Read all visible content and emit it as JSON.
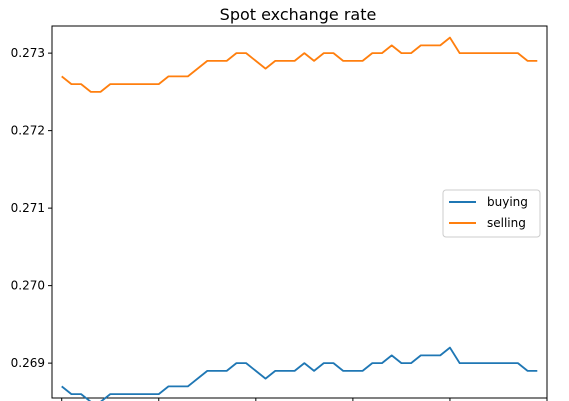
{
  "chart_data": {
    "type": "line",
    "title": "Spot exchange rate",
    "xlabel": "",
    "ylabel": "",
    "x": [
      1,
      2,
      3,
      4,
      5,
      6,
      7,
      8,
      9,
      10,
      11,
      12,
      13,
      14,
      15,
      16,
      17,
      18,
      19,
      20,
      21,
      22,
      23,
      24,
      25,
      26,
      27,
      28,
      29,
      30,
      31,
      32,
      33,
      34,
      35,
      36,
      37,
      38,
      39,
      40,
      41,
      42,
      43,
      44,
      45,
      46,
      47,
      48,
      49,
      50
    ],
    "xlim": [
      0,
      51
    ],
    "ylim": [
      0.26855,
      0.27335
    ],
    "yticks": [
      0.269,
      0.27,
      0.271,
      0.272,
      0.273
    ],
    "ytick_labels": [
      "0.269",
      "0.270",
      "0.271",
      "0.272",
      "0.273"
    ],
    "xticks": [
      1,
      11,
      21,
      31,
      41,
      51
    ],
    "grid": false,
    "legend_position": "center-right",
    "series": [
      {
        "name": "buying",
        "color": "#1f77b4",
        "values": [
          0.2687,
          0.2686,
          0.2686,
          0.2685,
          0.2685,
          0.2686,
          0.2686,
          0.2686,
          0.2686,
          0.2686,
          0.2686,
          0.2687,
          0.2687,
          0.2687,
          0.2688,
          0.2689,
          0.2689,
          0.2689,
          0.269,
          0.269,
          0.2689,
          0.2688,
          0.2689,
          0.2689,
          0.2689,
          0.269,
          0.2689,
          0.269,
          0.269,
          0.2689,
          0.2689,
          0.2689,
          0.269,
          0.269,
          0.2691,
          0.269,
          0.269,
          0.2691,
          0.2691,
          0.2691,
          0.2692,
          0.269,
          0.269,
          0.269,
          0.269,
          0.269,
          0.269,
          0.269,
          0.2689,
          0.2689
        ]
      },
      {
        "name": "selling",
        "color": "#ff7f0e",
        "values": [
          0.2727,
          0.2726,
          0.2726,
          0.2725,
          0.2725,
          0.2726,
          0.2726,
          0.2726,
          0.2726,
          0.2726,
          0.2726,
          0.2727,
          0.2727,
          0.2727,
          0.2728,
          0.2729,
          0.2729,
          0.2729,
          0.273,
          0.273,
          0.2729,
          0.2728,
          0.2729,
          0.2729,
          0.2729,
          0.273,
          0.2729,
          0.273,
          0.273,
          0.2729,
          0.2729,
          0.2729,
          0.273,
          0.273,
          0.2731,
          0.273,
          0.273,
          0.2731,
          0.2731,
          0.2731,
          0.2732,
          0.273,
          0.273,
          0.273,
          0.273,
          0.273,
          0.273,
          0.273,
          0.2729,
          0.2729
        ]
      }
    ]
  }
}
